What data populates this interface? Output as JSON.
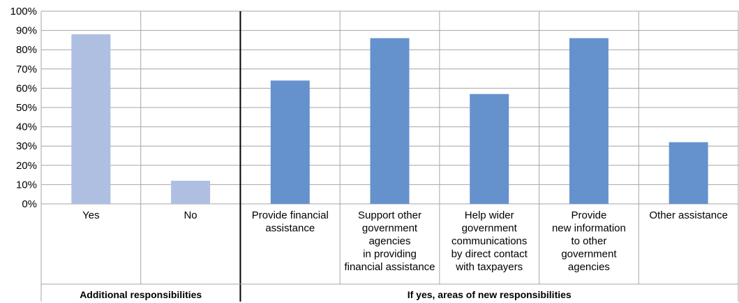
{
  "chart_data": {
    "type": "bar",
    "title": "",
    "xlabel": "",
    "ylabel": "",
    "ylim": [
      0,
      100
    ],
    "yticks": [
      "0%",
      "10%",
      "20%",
      "30%",
      "40%",
      "50%",
      "60%",
      "70%",
      "80%",
      "90%",
      "100%"
    ],
    "categories": [
      [
        "Yes"
      ],
      [
        "No"
      ],
      [
        "Provide financial",
        "assistance"
      ],
      [
        "Support other",
        "government",
        "agencies",
        "in providing",
        "financial assistance"
      ],
      [
        "Help wider",
        "government",
        "communications",
        "by direct contact",
        "with taxpayers"
      ],
      [
        "Provide",
        "new information",
        "to other",
        "government",
        "agencies"
      ],
      [
        "Other assistance"
      ]
    ],
    "values": [
      88,
      12,
      64,
      86,
      57,
      86,
      32
    ],
    "groups": [
      {
        "label": "Additional responsibilities",
        "count": 2,
        "color": "#aebfe2"
      },
      {
        "label": "If yes, areas of new responsibilities",
        "count": 5,
        "color": "#6592cd"
      }
    ],
    "grid": true,
    "legend": "none"
  }
}
